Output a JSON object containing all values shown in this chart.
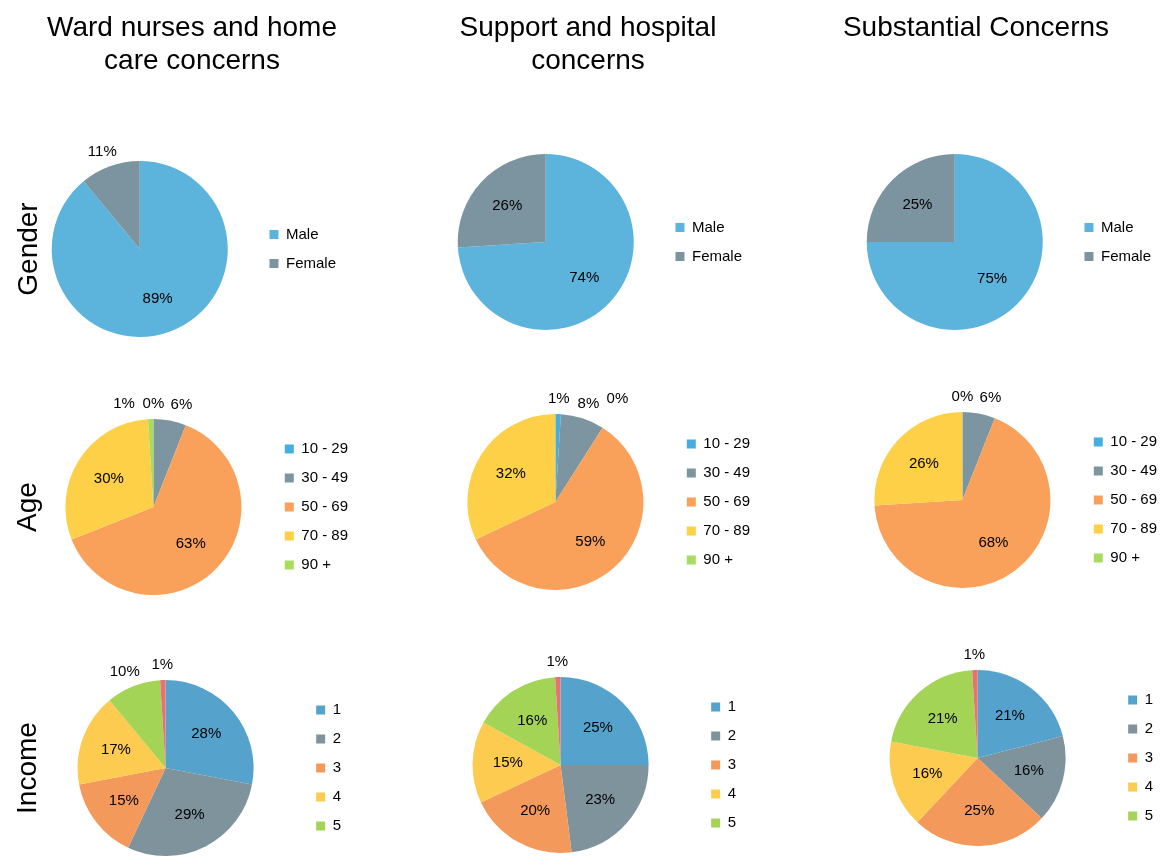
{
  "chart_data": [
    {
      "type": "pie",
      "title": "Ward nurses and home care concerns",
      "ylabel": "Gender",
      "categories": [
        "Male",
        "Female"
      ],
      "values": [
        89,
        11
      ],
      "colors": [
        "#5cb3dc",
        "#7b949f"
      ],
      "value_labels": [
        "89%",
        "11%"
      ],
      "legend": "right"
    },
    {
      "type": "pie",
      "title": "Support and hospital concerns",
      "categories": [
        "Male",
        "Female"
      ],
      "values": [
        74,
        26
      ],
      "colors": [
        "#5cb3dc",
        "#7b949f"
      ],
      "value_labels": [
        "74%",
        "26%"
      ],
      "legend": "right"
    },
    {
      "type": "pie",
      "title": "Substantial Concerns",
      "categories": [
        "Male",
        "Female"
      ],
      "values": [
        75,
        25
      ],
      "colors": [
        "#5cb3dc",
        "#7b949f"
      ],
      "value_labels": [
        "75%",
        "25%"
      ],
      "legend": "right"
    },
    {
      "type": "pie",
      "ylabel": "Age",
      "categories": [
        "10 - 29",
        "30 - 49",
        "50 - 69",
        "70 - 89",
        "90 +"
      ],
      "values": [
        0,
        6,
        63,
        30,
        1
      ],
      "colors": [
        "#45aede",
        "#7d95a1",
        "#f9a15b",
        "#fdd048",
        "#a8dc5e"
      ],
      "value_labels": [
        "0%",
        "6%",
        "63%",
        "30%",
        "1%"
      ],
      "legend": "right"
    },
    {
      "type": "pie",
      "categories": [
        "10 - 29",
        "30 - 49",
        "50 - 69",
        "70 - 89",
        "90 +"
      ],
      "values": [
        1,
        8,
        59,
        32,
        0
      ],
      "colors": [
        "#45aede",
        "#7d95a1",
        "#f9a15b",
        "#fdd048",
        "#a8dc5e"
      ],
      "value_labels": [
        "1%",
        "8%",
        "59%",
        "32%",
        "0%"
      ],
      "legend": "right"
    },
    {
      "type": "pie",
      "categories": [
        "10 - 29",
        "30 - 49",
        "50 - 69",
        "70 - 89",
        "90 +"
      ],
      "values": [
        0,
        6,
        68,
        26,
        null
      ],
      "colors": [
        "#45aede",
        "#7d95a1",
        "#f9a15b",
        "#fdd048",
        "#a8dc5e"
      ],
      "value_labels": [
        "0%",
        "6%",
        "68%",
        "26%",
        null
      ],
      "legend": "right"
    },
    {
      "type": "pie",
      "ylabel": "Income",
      "categories": [
        "1",
        "2",
        "3",
        "4",
        "5",
        null
      ],
      "values": [
        28,
        29,
        15,
        17,
        10,
        1
      ],
      "colors": [
        "#55a3cc",
        "#7f939d",
        "#f4995c",
        "#fccb4f",
        "#a3d456",
        "#e57373"
      ],
      "value_labels": [
        "28%",
        "29%",
        "15%",
        "17%",
        "10%",
        "1%"
      ],
      "legend": "right"
    },
    {
      "type": "pie",
      "categories": [
        "1",
        "2",
        "3",
        "4",
        "5",
        null
      ],
      "values": [
        25,
        23,
        20,
        15,
        16,
        1
      ],
      "colors": [
        "#55a3cc",
        "#7f939d",
        "#f4995c",
        "#fccb4f",
        "#a3d456",
        "#e57373"
      ],
      "value_labels": [
        "25%",
        "23%",
        "20%",
        "15%",
        "16%",
        "1%"
      ],
      "legend": "right"
    },
    {
      "type": "pie",
      "categories": [
        "1",
        "2",
        "3",
        "4",
        "5",
        null
      ],
      "values": [
        21,
        16,
        25,
        16,
        21,
        1
      ],
      "colors": [
        "#55a3cc",
        "#7f939d",
        "#f4995c",
        "#fccb4f",
        "#a3d456",
        "#e57373"
      ],
      "value_labels": [
        "21%",
        "16%",
        "25%",
        "16%",
        "21%",
        "1%"
      ],
      "legend": "right"
    }
  ]
}
